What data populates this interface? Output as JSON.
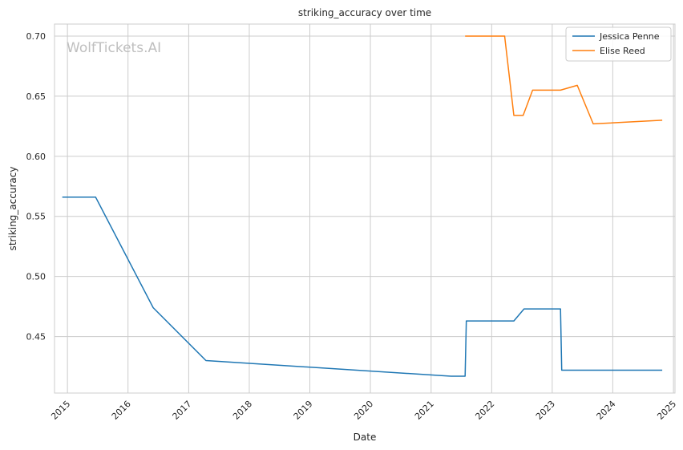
{
  "chart_data": {
    "type": "line",
    "title": "striking_accuracy over time",
    "xlabel": "Date",
    "ylabel": "striking_accuracy",
    "watermark": "WolfTickets.AI",
    "x_ticks": [
      "2015",
      "2016",
      "2017",
      "2018",
      "2019",
      "2020",
      "2021",
      "2022",
      "2023",
      "2024",
      "2025"
    ],
    "y_ticks": [
      "0.45",
      "0.50",
      "0.55",
      "0.60",
      "0.65",
      "0.70"
    ],
    "xlim": [
      "2014-10-15",
      "2025-01-10"
    ],
    "ylim": [
      0.403,
      0.71
    ],
    "grid": true,
    "legend_position": "top-right",
    "series": [
      {
        "name": "Jessica Penne",
        "color": "#1f77b4",
        "points": [
          [
            "2014-12-01",
            0.566
          ],
          [
            "2015-06-20",
            0.566
          ],
          [
            "2016-06-01",
            0.474
          ],
          [
            "2017-04-15",
            0.43
          ],
          [
            "2021-05-01",
            0.417
          ],
          [
            "2021-07-25",
            0.417
          ],
          [
            "2021-08-01",
            0.463
          ],
          [
            "2022-05-15",
            0.463
          ],
          [
            "2022-07-15",
            0.473
          ],
          [
            "2023-02-20",
            0.473
          ],
          [
            "2023-02-27",
            0.422
          ],
          [
            "2024-10-25",
            0.422
          ]
        ]
      },
      {
        "name": "Elise Reed",
        "color": "#ff7f0e",
        "points": [
          [
            "2021-07-25",
            0.7
          ],
          [
            "2022-03-20",
            0.7
          ],
          [
            "2022-05-15",
            0.634
          ],
          [
            "2022-07-10",
            0.634
          ],
          [
            "2022-09-05",
            0.655
          ],
          [
            "2023-02-20",
            0.655
          ],
          [
            "2023-06-01",
            0.659
          ],
          [
            "2023-09-05",
            0.627
          ],
          [
            "2024-10-25",
            0.63
          ]
        ]
      }
    ]
  }
}
